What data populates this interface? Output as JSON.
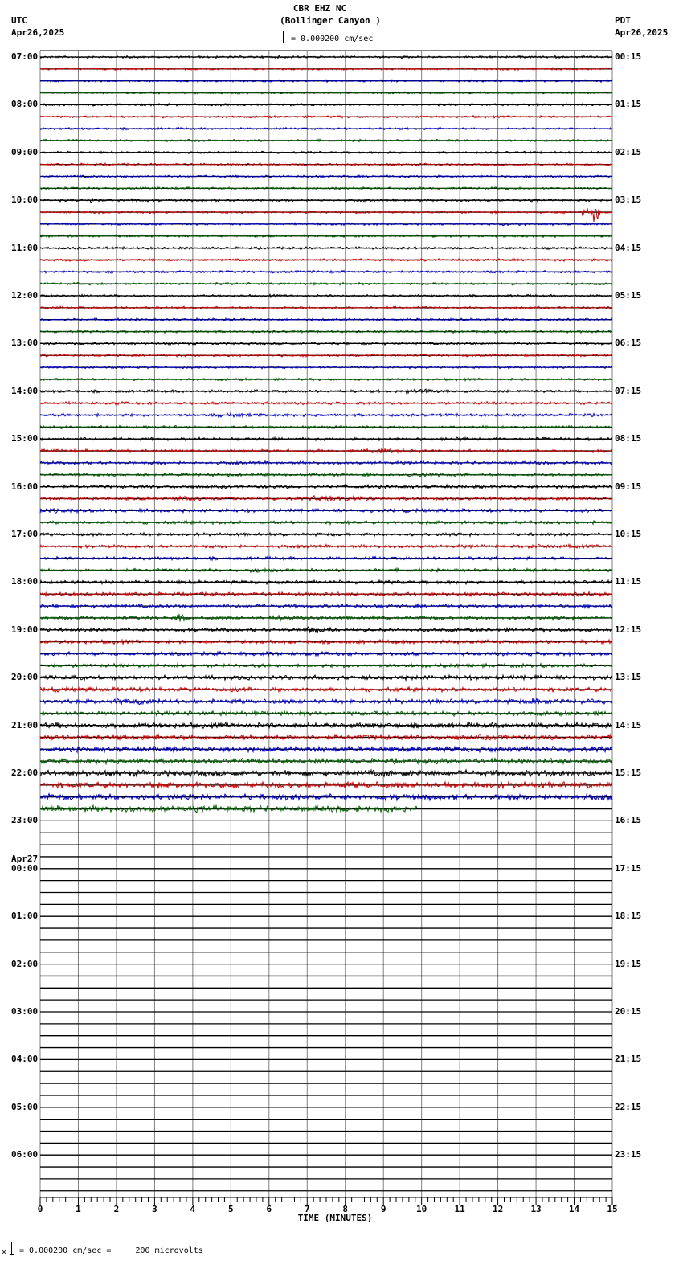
{
  "header": {
    "station": "CBR EHZ NC",
    "location": "(Bollinger Canyon )",
    "left_zone": "UTC",
    "left_date": "Apr26,2025",
    "right_zone": "PDT",
    "right_date": "Apr26,2025",
    "scale_text": "= 0.000200 cm/sec"
  },
  "footer": {
    "scale_text": "= 0.000200 cm/sec =     200 microvolts",
    "x_axis_title": "TIME (MINUTES)"
  },
  "colors": {
    "trace_cycle": [
      "#000000",
      "#d40000",
      "#0000cc",
      "#006400"
    ],
    "baseline": "#000000",
    "gridline": "#808080"
  },
  "chart_data": {
    "type": "line",
    "title": "CBR EHZ NC (Bollinger Canyon )",
    "xlabel": "TIME (MINUTES)",
    "ylabel": "",
    "x_ticks": [
      "0",
      "1",
      "2",
      "3",
      "4",
      "5",
      "6",
      "7",
      "8",
      "9",
      "10",
      "11",
      "12",
      "13",
      "14",
      "15"
    ],
    "xlim": [
      0,
      15
    ],
    "rows_per_hour": 4,
    "minutes_per_row": 15,
    "grid": true,
    "utc_labels": [
      "07:00",
      "08:00",
      "09:00",
      "10:00",
      "11:00",
      "12:00",
      "13:00",
      "14:00",
      "15:00",
      "16:00",
      "17:00",
      "18:00",
      "19:00",
      "20:00",
      "21:00",
      "22:00",
      "23:00",
      "Apr27\n00:00",
      "01:00",
      "02:00",
      "03:00",
      "04:00",
      "05:00",
      "06:00"
    ],
    "pdt_labels": [
      "00:15",
      "01:15",
      "02:15",
      "03:15",
      "04:15",
      "05:15",
      "06:15",
      "07:15",
      "08:15",
      "09:15",
      "10:15",
      "11:15",
      "12:15",
      "13:15",
      "14:15",
      "15:15",
      "16:15",
      "17:15",
      "18:15",
      "19:15",
      "20:15",
      "21:15",
      "22:15",
      "23:15"
    ],
    "recorded_rows": 64,
    "last_row_end_minute": 9.9,
    "noise_amplitude_by_hour": [
      1.2,
      1.2,
      1.2,
      1.3,
      1.3,
      1.3,
      1.3,
      1.5,
      1.6,
      1.8,
      1.7,
      1.9,
      2.0,
      2.4,
      2.8,
      3.2
    ],
    "events": [
      {
        "row": 12,
        "minute": 1.3,
        "amp": 3,
        "len": 0.3
      },
      {
        "row": 12,
        "minute": 2.4,
        "amp": 3,
        "len": 0.3
      },
      {
        "row": 13,
        "minute": 14.2,
        "amp": 4,
        "len": 0.5
      },
      {
        "row": 13,
        "minute": 14.5,
        "amp": 12,
        "len": 0.2
      },
      {
        "row": 14,
        "minute": 12.1,
        "amp": 3,
        "len": 0.2
      },
      {
        "row": 15,
        "minute": 0.6,
        "amp": 3,
        "len": 0.3
      },
      {
        "row": 15,
        "minute": 1.9,
        "amp": 3,
        "len": 0.3
      },
      {
        "row": 28,
        "minute": 9.6,
        "amp": 3,
        "len": 1.4
      },
      {
        "row": 30,
        "minute": 4.5,
        "amp": 2.5,
        "len": 1.5
      },
      {
        "row": 32,
        "minute": 10.6,
        "amp": 3,
        "len": 0.9
      },
      {
        "row": 33,
        "minute": 8.5,
        "amp": 3,
        "len": 2.0
      },
      {
        "row": 35,
        "minute": 9.6,
        "amp": 2.5,
        "len": 1.5
      },
      {
        "row": 37,
        "minute": 3.5,
        "amp": 3,
        "len": 1.6
      },
      {
        "row": 37,
        "minute": 7.1,
        "amp": 3.5,
        "len": 1.9
      },
      {
        "row": 38,
        "minute": 0.0,
        "amp": 2.5,
        "len": 2.0
      },
      {
        "row": 41,
        "minute": 12.8,
        "amp": 3,
        "len": 1.4
      },
      {
        "row": 43,
        "minute": 5.5,
        "amp": 2.5,
        "len": 0.6
      },
      {
        "row": 45,
        "minute": 14.0,
        "amp": 3,
        "len": 1.0
      },
      {
        "row": 47,
        "minute": 3.6,
        "amp": 4.5,
        "len": 0.4
      },
      {
        "row": 47,
        "minute": 6.2,
        "amp": 3,
        "len": 1.4
      },
      {
        "row": 48,
        "minute": 6.9,
        "amp": 4.5,
        "len": 0.9
      },
      {
        "row": 50,
        "minute": 3.3,
        "amp": 3,
        "len": 3.0
      },
      {
        "row": 54,
        "minute": 2.0,
        "amp": 4,
        "len": 1.6
      },
      {
        "row": 54,
        "minute": 12.9,
        "amp": 4,
        "len": 0.9
      },
      {
        "row": 60,
        "minute": 9.0,
        "amp": 4,
        "len": 1.6
      },
      {
        "row": 60,
        "minute": 13.0,
        "amp": 4,
        "len": 1.8
      }
    ]
  }
}
